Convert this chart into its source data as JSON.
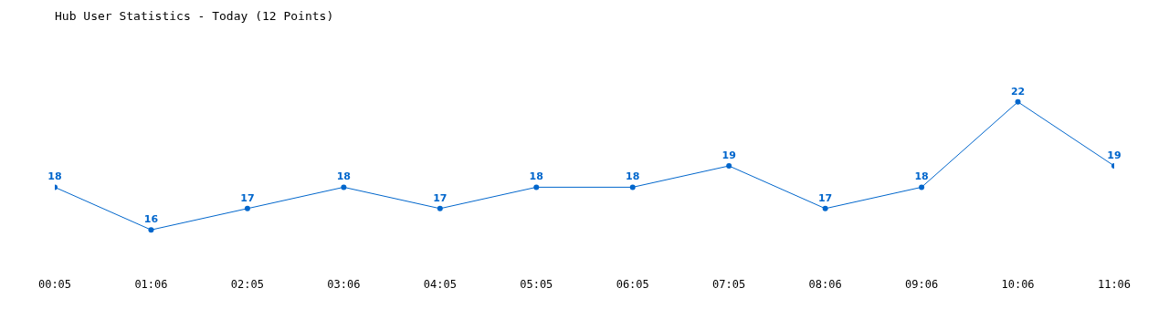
{
  "chart_data": {
    "type": "line",
    "title": "Hub User Statistics - Today (12 Points)",
    "categories": [
      "00:05",
      "01:06",
      "02:05",
      "03:06",
      "04:05",
      "05:05",
      "06:05",
      "07:05",
      "08:06",
      "09:06",
      "10:06",
      "11:06"
    ],
    "series": [
      {
        "color": "#0066cc",
        "values": [
          18,
          16,
          17,
          18,
          17,
          18,
          18,
          19,
          17,
          18,
          22,
          19
        ]
      }
    ],
    "data_labels": true,
    "marker": "circle",
    "line_style": "solid",
    "tick_labels": "x"
  }
}
